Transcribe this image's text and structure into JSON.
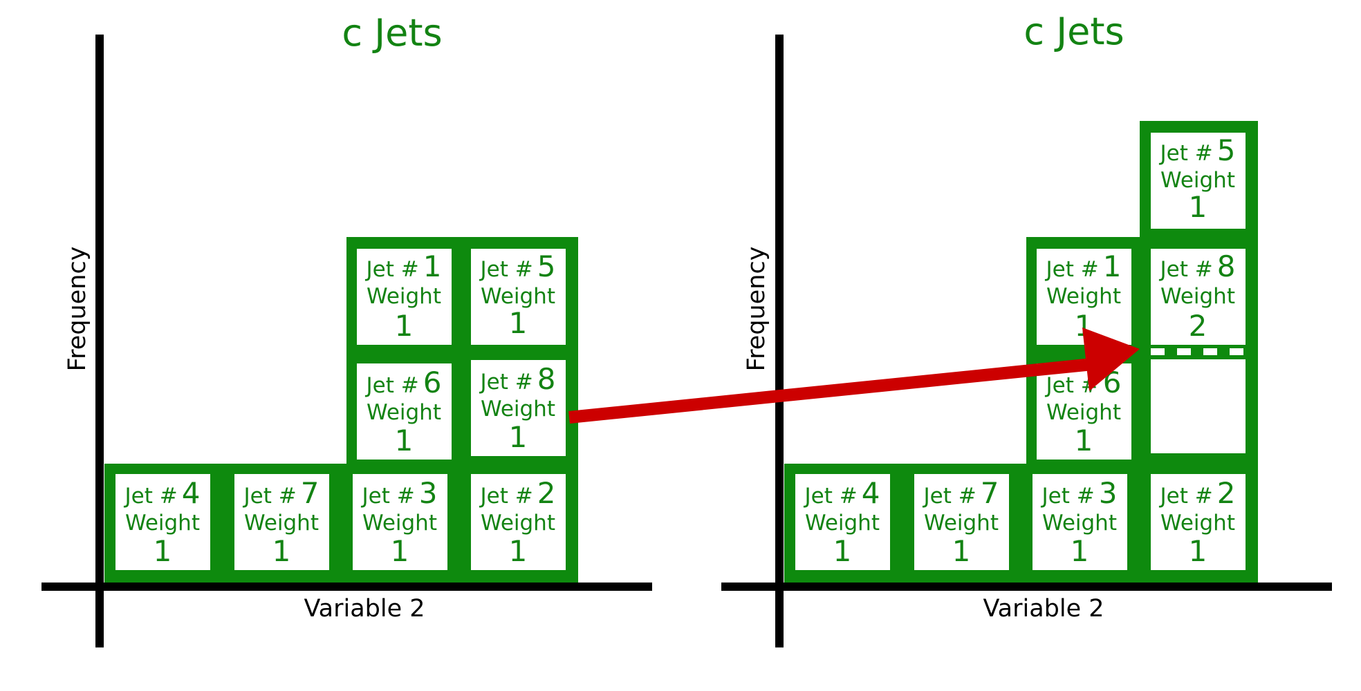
{
  "colors": {
    "green": "#0e8a0e",
    "text_green": "#138313",
    "axis": "#000000",
    "arrow": "#cc0000",
    "box_fill": "#ffffff"
  },
  "panels": [
    {
      "id": "left",
      "title": "c Jets",
      "y_label": "Frequency",
      "x_label": "Variable 2",
      "jets": [
        {
          "label": "Jet #",
          "num": "4",
          "weight_label": "Weight",
          "weight": "1"
        },
        {
          "label": "Jet #",
          "num": "7",
          "weight_label": "Weight",
          "weight": "1"
        },
        {
          "label": "Jet #",
          "num": "3",
          "weight_label": "Weight",
          "weight": "1"
        },
        {
          "label": "Jet #",
          "num": "2",
          "weight_label": "Weight",
          "weight": "1"
        },
        {
          "label": "Jet #",
          "num": "6",
          "weight_label": "Weight",
          "weight": "1"
        },
        {
          "label": "Jet #",
          "num": "8",
          "weight_label": "Weight",
          "weight": "1"
        },
        {
          "label": "Jet #",
          "num": "1",
          "weight_label": "Weight",
          "weight": "1"
        },
        {
          "label": "Jet #",
          "num": "5",
          "weight_label": "Weight",
          "weight": "1"
        }
      ]
    },
    {
      "id": "right",
      "title": "c Jets",
      "y_label": "Frequency",
      "x_label": "Variable 2",
      "jets": [
        {
          "label": "Jet #",
          "num": "4",
          "weight_label": "Weight",
          "weight": "1"
        },
        {
          "label": "Jet #",
          "num": "7",
          "weight_label": "Weight",
          "weight": "1"
        },
        {
          "label": "Jet #",
          "num": "3",
          "weight_label": "Weight",
          "weight": "1"
        },
        {
          "label": "Jet #",
          "num": "2",
          "weight_label": "Weight",
          "weight": "1"
        },
        {
          "label": "Jet #",
          "num": "6",
          "weight_label": "Weight",
          "weight": "1"
        },
        {
          "label": "Jet #",
          "num": "1",
          "weight_label": "Weight",
          "weight": "1"
        },
        {
          "label": "Jet #",
          "num": "8",
          "weight_label": "Weight",
          "weight": "2"
        },
        {
          "label": "Jet #",
          "num": "5",
          "weight_label": "Weight",
          "weight": "1"
        }
      ]
    }
  ]
}
